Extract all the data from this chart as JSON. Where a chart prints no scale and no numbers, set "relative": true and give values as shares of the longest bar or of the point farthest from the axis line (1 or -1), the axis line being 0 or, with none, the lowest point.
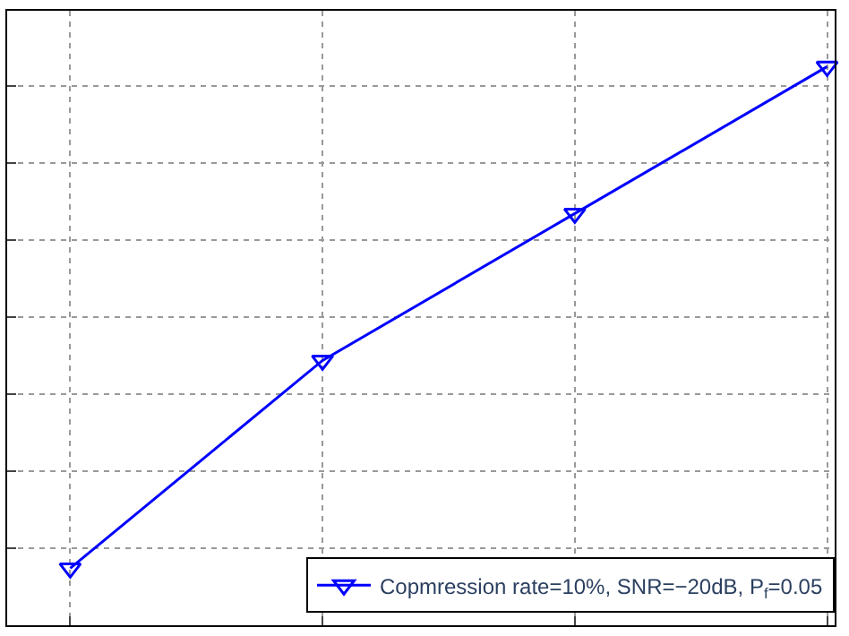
{
  "chart_data": {
    "type": "line",
    "relative": true,
    "categories": [
      null,
      null,
      null,
      null
    ],
    "series": [
      {
        "name": "Copmression rate=10%, SNR=−20dB, P$_{f}$=0.05",
        "color": "#0000ff",
        "values": [
          0.102,
          0.474,
          0.737,
          1
        ]
      }
    ],
    "marker": "triangle",
    "line_style": "solid",
    "grid": true,
    "legend": "bottom right"
  }
}
